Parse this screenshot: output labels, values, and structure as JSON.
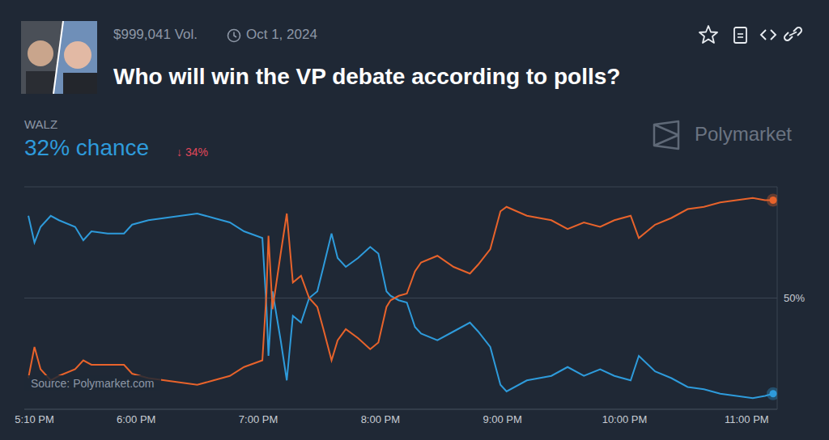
{
  "chart_data": {
    "type": "line",
    "title": "Who will win the VP debate according to polls?",
    "annotations": {
      "volume": "$999,041 Vol.",
      "date": "Oct 1, 2024",
      "chance": "32% chance",
      "change": "↓ 34%",
      "watermark": "Polymarket",
      "source": "Source: Polymarket.com"
    },
    "x": [
      1027,
      1030,
      1033,
      1038,
      1042,
      1050,
      1054,
      1058,
      1066,
      1074,
      1078,
      1086,
      1094,
      1110,
      1118,
      1126,
      1133,
      1139,
      1142,
      1144,
      1145,
      1147,
      1151,
      1154,
      1157,
      1161,
      1165,
      1169,
      1172,
      1176,
      1179,
      1183,
      1189,
      1195,
      1199,
      1203,
      1205,
      1209,
      1213,
      1217,
      1220,
      1228,
      1236,
      1244,
      1248,
      1254,
      1259,
      1262,
      1272,
      1284,
      1292,
      1300,
      1308,
      1315,
      1323,
      1327,
      1335,
      1343,
      1351,
      1359,
      1367,
      1375,
      1383,
      1389,
      1393
    ],
    "series": [
      {
        "name": "WALZ",
        "color": "#2e9bdb",
        "marker": "end",
        "values": [
          87,
          75,
          82,
          87,
          85,
          82,
          76,
          80,
          79,
          79,
          83,
          85,
          86,
          88,
          86,
          84,
          80,
          78,
          77,
          46,
          24,
          53,
          31,
          13,
          42,
          39,
          50,
          53,
          64,
          79,
          68,
          64,
          68,
          73,
          70,
          53,
          51,
          49,
          48,
          37,
          34,
          31,
          35,
          39,
          35,
          28,
          11,
          8,
          13,
          15,
          19,
          15,
          18,
          15,
          13,
          24,
          17,
          14,
          10,
          9,
          7,
          6,
          5,
          6,
          7
        ]
      },
      {
        "color": "#e8632b",
        "marker": "end",
        "values": [
          14,
          28,
          18,
          13,
          15,
          18,
          22,
          20,
          20,
          20,
          16,
          14,
          13,
          11,
          13,
          15,
          19,
          21,
          22,
          52,
          78,
          45,
          70,
          88,
          57,
          60,
          50,
          46,
          36,
          22,
          31,
          36,
          32,
          27,
          30,
          46,
          49,
          51,
          52,
          62,
          66,
          69,
          64,
          61,
          65,
          72,
          89,
          91,
          87,
          85,
          81,
          84,
          82,
          85,
          87,
          77,
          83,
          86,
          90,
          91,
          93,
          94,
          95,
          94,
          94
        ]
      }
    ],
    "xlim": [
      1025,
      1395
    ],
    "xticks": [
      {
        "value": 1030,
        "label": "5:10 PM"
      },
      {
        "value": 1080,
        "label": "6:00 PM"
      },
      {
        "value": 1140,
        "label": "7:00 PM"
      },
      {
        "value": 1200,
        "label": "8:00 PM"
      },
      {
        "value": 1260,
        "label": "9:00 PM"
      },
      {
        "value": 1320,
        "label": "10:00 PM"
      },
      {
        "value": 1380,
        "label": "11:00 PM"
      }
    ],
    "ylim": [
      0,
      100
    ],
    "yticks": [
      {
        "value": 50,
        "label": "50%"
      }
    ],
    "grid": true
  }
}
